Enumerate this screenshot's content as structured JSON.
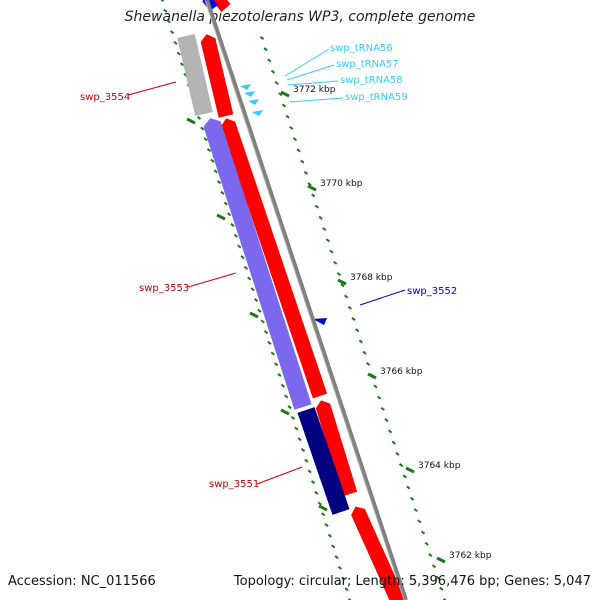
{
  "title": "Shewanella piezotolerans WP3, complete genome",
  "footer": {
    "accession": "Accession: NC_011566",
    "summary": "Topology: circular; Length: 5,396,476 bp; Genes: 5,047"
  },
  "colors": {
    "forward_gene": "#ff0000",
    "reverse_gene_selected": "#000080",
    "reverse_gene": "#7b68ee",
    "pseudo_gene": "#b4b4b4",
    "trna": "#33ccff",
    "trna_label": "#33ccff",
    "tick": "#1a7a1a",
    "backbone": "#808080",
    "feature_label_red": "#cc0000",
    "feature_label_blue": "#0000cc"
  },
  "ticks": [
    {
      "label": "3772 kbp",
      "kbp": 3772
    },
    {
      "label": "3770 kbp",
      "kbp": 3770
    },
    {
      "label": "3768 kbp",
      "kbp": 3768
    },
    {
      "label": "3766 kbp",
      "kbp": 3766
    },
    {
      "label": "3764 kbp",
      "kbp": 3764
    },
    {
      "label": "3762 kbp",
      "kbp": 3762
    }
  ],
  "genes": [
    {
      "name": "swp_3554",
      "strand": "reverse",
      "kind": "pseudo"
    },
    {
      "name": "swp_3553",
      "strand": "reverse",
      "kind": "reverse"
    },
    {
      "name": "swp_3551",
      "strand": "reverse",
      "kind": "reverse_selected"
    },
    {
      "name": "swp_3552",
      "strand": "forward",
      "kind": "forward"
    }
  ],
  "trnas": [
    "swp_tRNA56",
    "swp_tRNA57",
    "swp_tRNA58",
    "swp_tRNA59"
  ]
}
